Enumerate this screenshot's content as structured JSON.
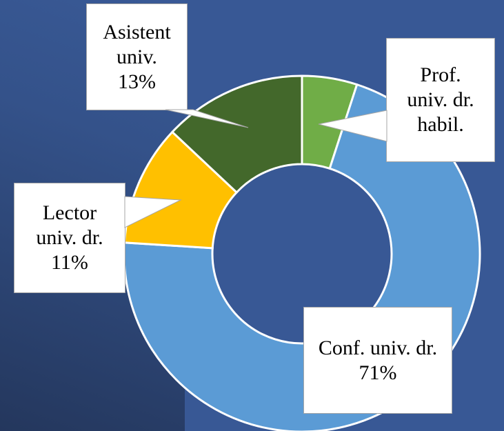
{
  "chart_data": {
    "type": "donut",
    "categories": [
      "Prof. univ. dr. habil.",
      "Conf. univ. dr.",
      "Lector univ. dr.",
      "Asistent univ."
    ],
    "values": [
      5,
      71,
      11,
      13
    ],
    "value_labels": [
      null,
      "71%",
      "11%",
      "13%"
    ],
    "colors": [
      "#70ad47",
      "#5b9bd5",
      "#ffc000",
      "#43682b"
    ]
  }
}
